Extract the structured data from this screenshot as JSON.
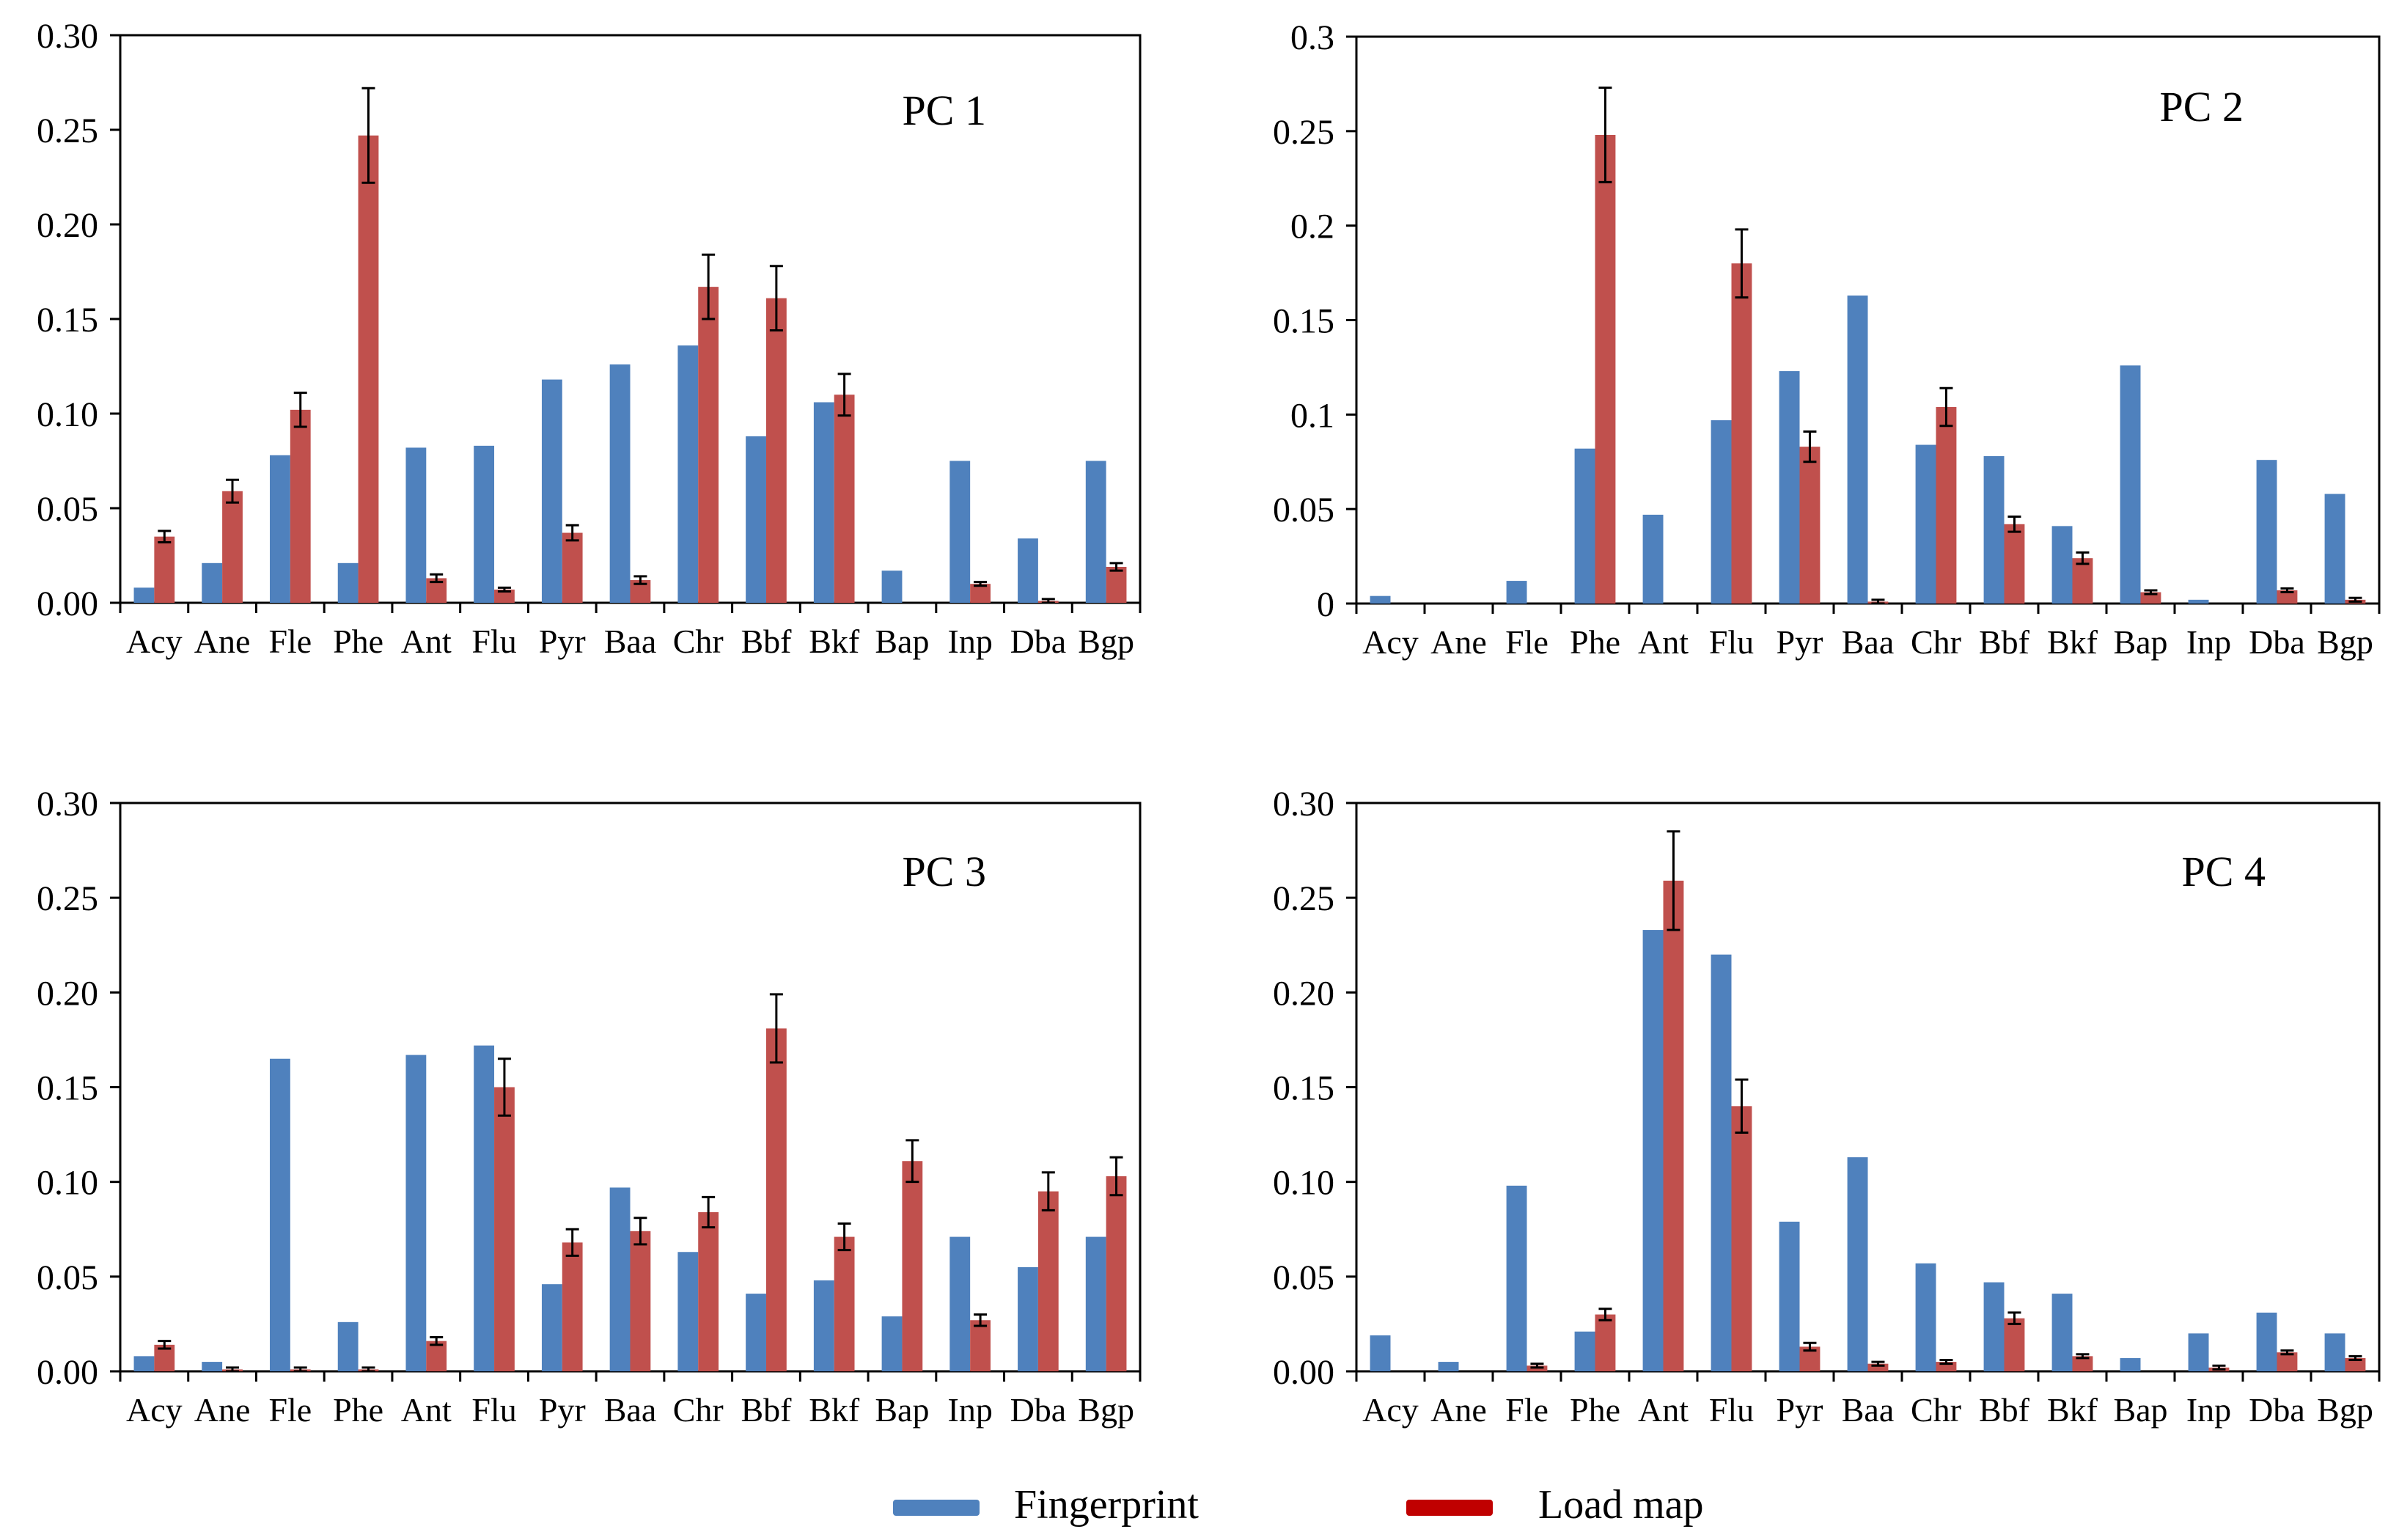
{
  "legend": {
    "fingerprint_label": "Fingerprint",
    "loadmap_label": "Load map",
    "fingerprint_color": "#4F81BD",
    "loadmap_color": "#C0504D"
  },
  "chart_data": [
    {
      "type": "bar",
      "title": "PC 1",
      "categories": [
        "Acy",
        "Ane",
        "Fle",
        "Phe",
        "Ant",
        "Flu",
        "Pyr",
        "Baa",
        "Chr",
        "Bbf",
        "Bkf",
        "Bap",
        "Inp",
        "Dba",
        "Bgp"
      ],
      "ylim": [
        0,
        0.3
      ],
      "yticks": [
        "0.00",
        "0.05",
        "0.10",
        "0.15",
        "0.20",
        "0.25",
        "0.30"
      ],
      "series": [
        {
          "name": "Fingerprint",
          "values": [
            0.008,
            0.021,
            0.078,
            0.021,
            0.082,
            0.083,
            0.118,
            0.126,
            0.136,
            0.088,
            0.106,
            0.017,
            0.075,
            0.034,
            0.075
          ]
        },
        {
          "name": "Load map",
          "values": [
            0.035,
            0.059,
            0.102,
            0.247,
            0.013,
            0.007,
            0.037,
            0.012,
            0.167,
            0.161,
            0.11,
            0.0,
            0.01,
            0.001,
            0.019
          ],
          "errors": [
            0.003,
            0.006,
            0.009,
            0.025,
            0.002,
            0.001,
            0.004,
            0.002,
            0.017,
            0.017,
            0.011,
            0.0,
            0.001,
            0.001,
            0.002
          ]
        }
      ]
    },
    {
      "type": "bar",
      "title": "PC 2",
      "categories": [
        "Acy",
        "Ane",
        "Fle",
        "Phe",
        "Ant",
        "Flu",
        "Pyr",
        "Baa",
        "Chr",
        "Bbf",
        "Bkf",
        "Bap",
        "Inp",
        "Dba",
        "Bgp"
      ],
      "ylim": [
        0,
        0.3
      ],
      "yticks": [
        "0",
        "0.05",
        "0.1",
        "0.15",
        "0.2",
        "0.25",
        "0.3"
      ],
      "series": [
        {
          "name": "Fingerprint",
          "values": [
            0.004,
            0.0,
            0.012,
            0.082,
            0.047,
            0.097,
            0.123,
            0.163,
            0.084,
            0.078,
            0.041,
            0.126,
            0.002,
            0.076,
            0.058
          ]
        },
        {
          "name": "Load map",
          "values": [
            0.0,
            0.0,
            0.0,
            0.248,
            0.0,
            0.18,
            0.083,
            0.001,
            0.104,
            0.042,
            0.024,
            0.006,
            0.0,
            0.007,
            0.002
          ],
          "errors": [
            0.0,
            0.0,
            0.0,
            0.025,
            0.0,
            0.018,
            0.008,
            0.001,
            0.01,
            0.004,
            0.003,
            0.001,
            0.0,
            0.001,
            0.001
          ]
        }
      ]
    },
    {
      "type": "bar",
      "title": "PC 3",
      "categories": [
        "Acy",
        "Ane",
        "Fle",
        "Phe",
        "Ant",
        "Flu",
        "Pyr",
        "Baa",
        "Chr",
        "Bbf",
        "Bkf",
        "Bap",
        "Inp",
        "Dba",
        "Bgp"
      ],
      "ylim": [
        0,
        0.3
      ],
      "yticks": [
        "0.00",
        "0.05",
        "0.10",
        "0.15",
        "0.20",
        "0.25",
        "0.30"
      ],
      "series": [
        {
          "name": "Fingerprint",
          "values": [
            0.008,
            0.005,
            0.165,
            0.026,
            0.167,
            0.172,
            0.046,
            0.097,
            0.063,
            0.041,
            0.048,
            0.029,
            0.071,
            0.055,
            0.071
          ]
        },
        {
          "name": "Load map",
          "values": [
            0.014,
            0.001,
            0.001,
            0.001,
            0.016,
            0.15,
            0.068,
            0.074,
            0.084,
            0.181,
            0.071,
            0.111,
            0.027,
            0.095,
            0.103
          ],
          "errors": [
            0.002,
            0.001,
            0.001,
            0.001,
            0.002,
            0.015,
            0.007,
            0.007,
            0.008,
            0.018,
            0.007,
            0.011,
            0.003,
            0.01,
            0.01
          ]
        }
      ]
    },
    {
      "type": "bar",
      "title": "PC 4",
      "categories": [
        "Acy",
        "Ane",
        "Fle",
        "Phe",
        "Ant",
        "Flu",
        "Pyr",
        "Baa",
        "Chr",
        "Bbf",
        "Bkf",
        "Bap",
        "Inp",
        "Dba",
        "Bgp"
      ],
      "ylim": [
        0,
        0.3
      ],
      "yticks": [
        "0.00",
        "0.05",
        "0.10",
        "0.15",
        "0.20",
        "0.25",
        "0.30"
      ],
      "series": [
        {
          "name": "Fingerprint",
          "values": [
            0.019,
            0.005,
            0.098,
            0.021,
            0.233,
            0.22,
            0.079,
            0.113,
            0.057,
            0.047,
            0.041,
            0.007,
            0.02,
            0.031,
            0.02
          ]
        },
        {
          "name": "Load map",
          "values": [
            0.0,
            0.0,
            0.003,
            0.03,
            0.259,
            0.14,
            0.013,
            0.004,
            0.005,
            0.028,
            0.008,
            0.0,
            0.002,
            0.01,
            0.007
          ],
          "errors": [
            0.0,
            0.0,
            0.001,
            0.003,
            0.026,
            0.014,
            0.002,
            0.001,
            0.001,
            0.003,
            0.001,
            0.0,
            0.001,
            0.001,
            0.001
          ]
        }
      ]
    }
  ]
}
